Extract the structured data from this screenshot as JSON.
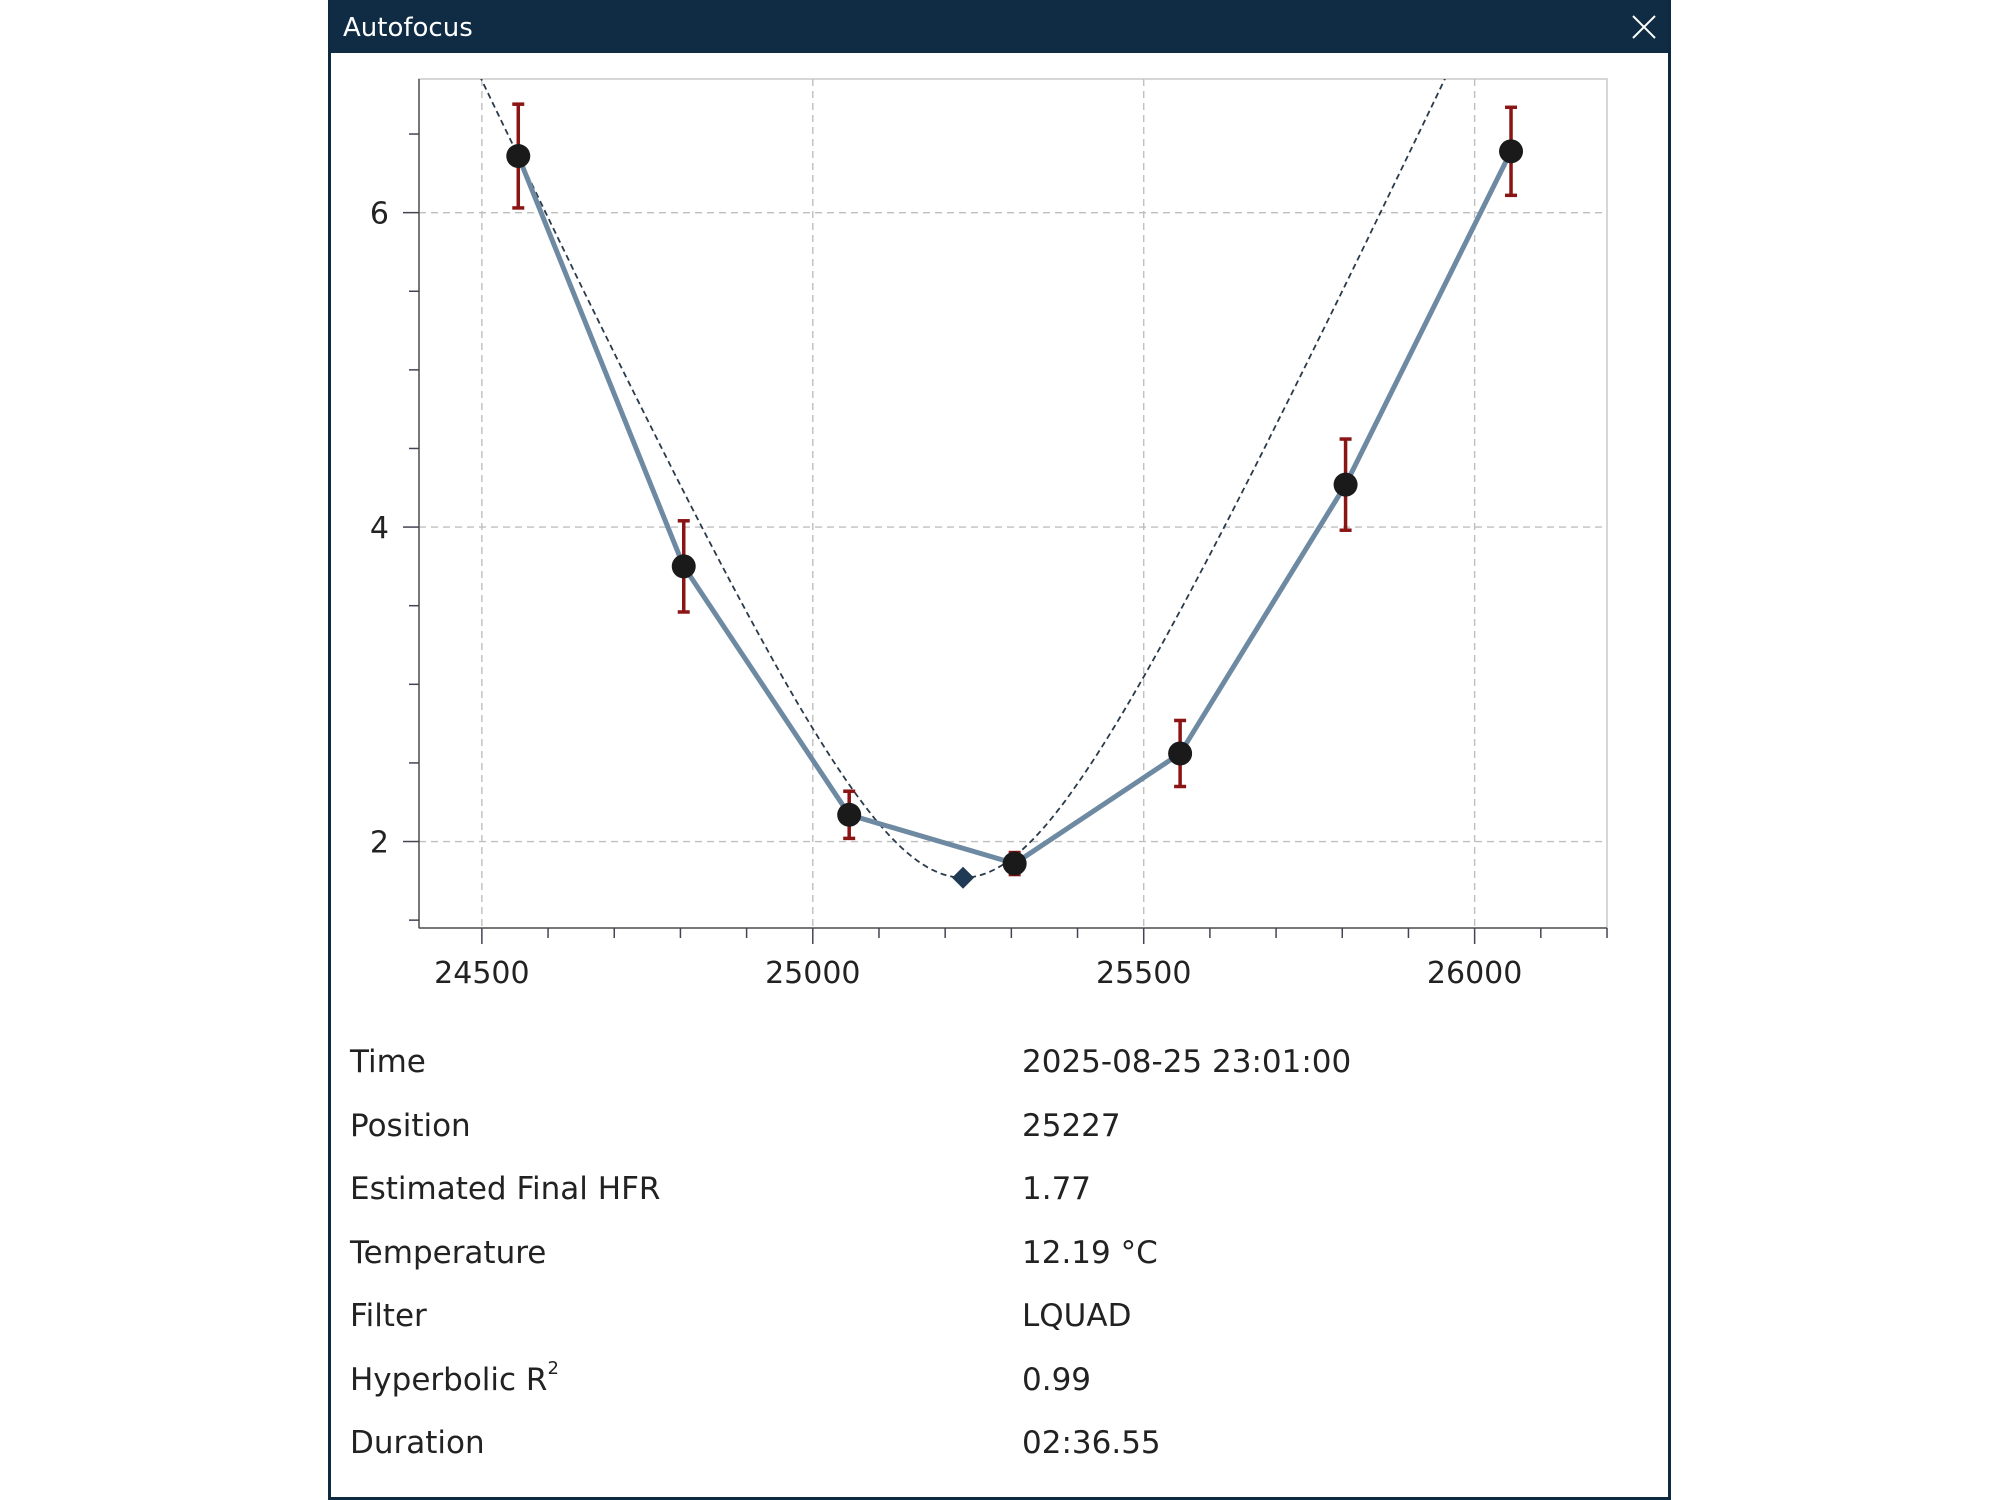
{
  "window": {
    "title": "Autofocus"
  },
  "chart_data": {
    "type": "scatter",
    "title": "",
    "xlabel": "",
    "ylabel": "",
    "xlim": [
      24405,
      26200
    ],
    "ylim": [
      1.45,
      6.85
    ],
    "grid": true,
    "x_ticks": [
      24500,
      25000,
      25500,
      26000
    ],
    "y_ticks": [
      2,
      4,
      6
    ],
    "series": [
      {
        "x": [
          24555,
          24805,
          25055,
          25305,
          25555,
          25805,
          26055
        ],
        "y": [
          6.36,
          3.75,
          2.17,
          1.86,
          2.56,
          4.27,
          6.39
        ],
        "error": [
          0.33,
          0.29,
          0.15,
          0.07,
          0.21,
          0.29,
          0.28
        ]
      }
    ],
    "fit_curve": {
      "type": "hyperbolic",
      "minimum_x": 25227,
      "minimum_y": 1.77
    },
    "colors": {
      "points": "#1a1a1a",
      "connect_line": "#6e8aa3",
      "error_bars": "#8b1414",
      "fit_line": "#2a3a4a",
      "grid": "#bfbfbf",
      "minimum_marker": "#203a55"
    }
  },
  "info": {
    "rows": [
      {
        "label": "Time",
        "value": "2025-08-25 23:01:00"
      },
      {
        "label": "Position",
        "value": "25227"
      },
      {
        "label": "Estimated Final HFR",
        "value": "1.77"
      },
      {
        "label": "Temperature",
        "value": "12.19 °C"
      },
      {
        "label": "Filter",
        "value": "LQUAD"
      },
      {
        "label": "Hyperbolic R",
        "value": "0.99",
        "label_sup": "2"
      },
      {
        "label": "Duration",
        "value": "02:36.55"
      }
    ]
  },
  "icons": {
    "close": "close-icon"
  }
}
